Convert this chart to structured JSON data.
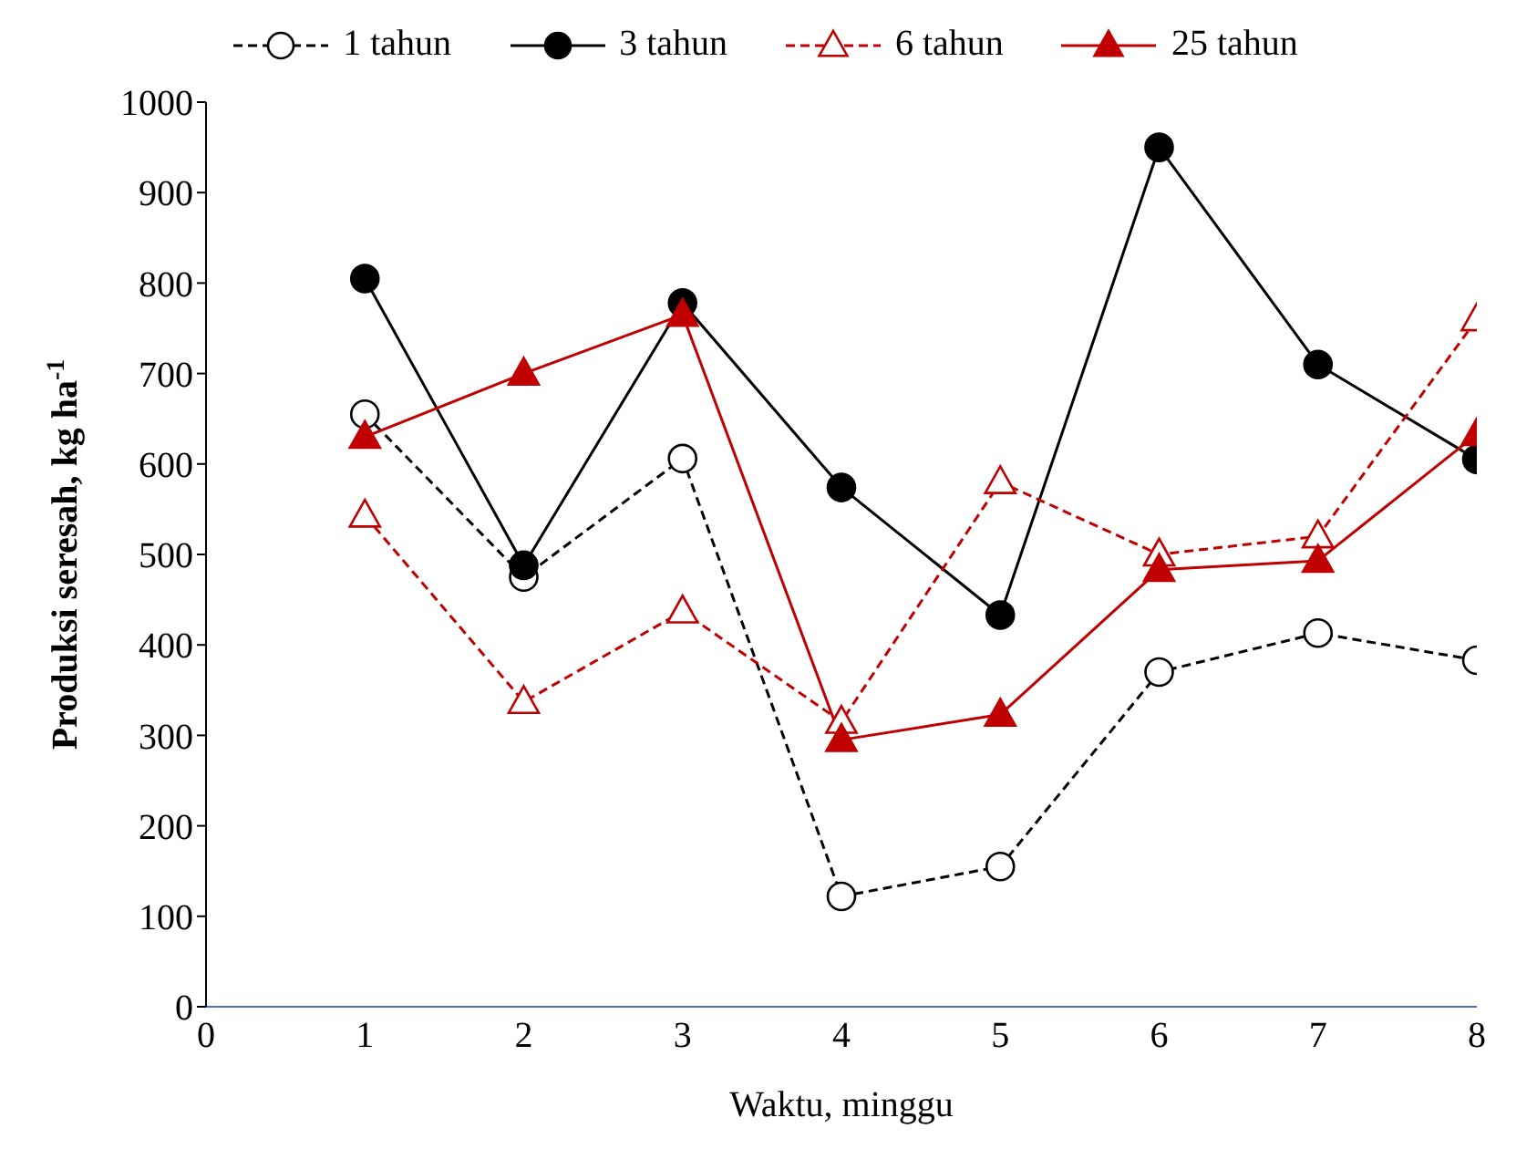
{
  "chart_data": {
    "type": "line",
    "xlabel": "Waktu, minggu",
    "ylabel": "Produksi seresah, kg ha$^{-1}$",
    "x": [
      1,
      2,
      3,
      4,
      5,
      6,
      7,
      8
    ],
    "xlim": [
      0,
      8
    ],
    "xticks": [
      0,
      1,
      2,
      3,
      4,
      5,
      6,
      7,
      8
    ],
    "ylim": [
      0,
      1000
    ],
    "yticks": [
      0,
      100,
      200,
      300,
      400,
      500,
      600,
      700,
      800,
      900,
      1000
    ],
    "grid": false,
    "legend": "top",
    "series": [
      {
        "name": "1 tahun",
        "color": "#000000",
        "marker": "circle",
        "line_style": "dashed",
        "values": [
          655,
          475,
          606,
          122,
          155,
          370,
          413,
          383
        ]
      },
      {
        "name": "3 tahun",
        "color": "#000000",
        "marker": "circle",
        "line_style": "solid",
        "values": [
          805,
          488,
          778,
          574,
          433,
          950,
          710,
          605
        ]
      },
      {
        "name": "6 tahun",
        "color": "#c00000",
        "marker": "triangle",
        "line_style": "dashed",
        "values": [
          543,
          337,
          437,
          315,
          580,
          500,
          520,
          760
        ]
      },
      {
        "name": "25 tahun",
        "color": "#c00000",
        "marker": "triangle",
        "line_style": "solid",
        "values": [
          630,
          700,
          765,
          295,
          323,
          483,
          493,
          633
        ]
      }
    ]
  }
}
